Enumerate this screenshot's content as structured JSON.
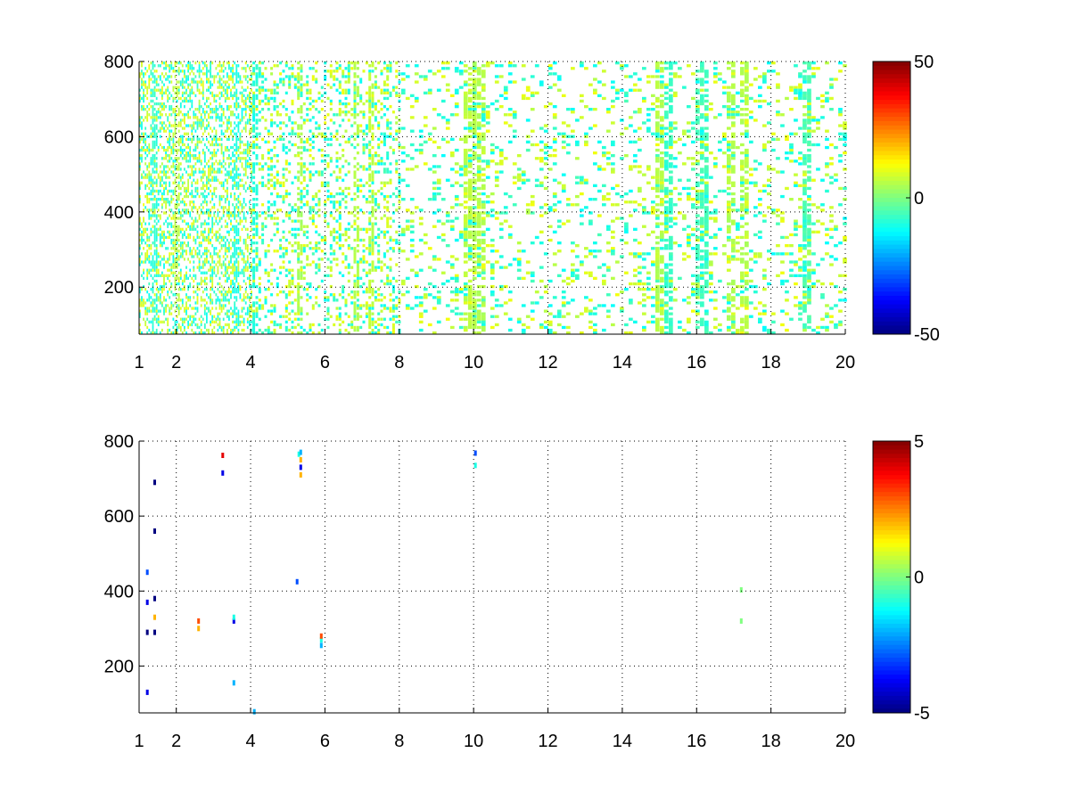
{
  "chart_data": [
    {
      "type": "heatmap",
      "xlim": [
        1,
        20
      ],
      "ylim": [
        75,
        800
      ],
      "xticks": [
        1,
        2,
        4,
        6,
        8,
        10,
        12,
        14,
        16,
        18,
        20
      ],
      "xtick_labels": [
        "1",
        "2",
        "4",
        "6",
        "8",
        "10",
        "12",
        "14",
        "16",
        "18",
        "20"
      ],
      "yticks": [
        200,
        400,
        600,
        800
      ],
      "ytick_labels": [
        "200",
        "400",
        "600",
        "800"
      ],
      "grid": true,
      "colormap": "jet",
      "colorbar": {
        "min": -50,
        "max": 50,
        "ticks": [
          50,
          0,
          -50
        ],
        "tick_labels": [
          "50",
          "0",
          "-50"
        ]
      },
      "value_range_shown": [
        -15,
        12
      ],
      "column_bands": [
        {
          "x": 1.4,
          "value": -8
        },
        {
          "x": 2.0,
          "value": 6
        },
        {
          "x": 3.6,
          "value": -10
        },
        {
          "x": 4.1,
          "value": -9
        },
        {
          "x": 5.3,
          "value": 4
        },
        {
          "x": 6.8,
          "value": 5
        },
        {
          "x": 7.2,
          "value": 6
        },
        {
          "x": 9.8,
          "value": 6
        },
        {
          "x": 10.1,
          "value": 5
        },
        {
          "x": 15.0,
          "value": 5
        },
        {
          "x": 15.2,
          "value": -7
        },
        {
          "x": 16.1,
          "value": -6
        },
        {
          "x": 16.9,
          "value": 5
        },
        {
          "x": 17.2,
          "value": 5
        },
        {
          "x": 18.9,
          "value": -5
        }
      ]
    },
    {
      "type": "heatmap",
      "xlim": [
        1,
        20
      ],
      "ylim": [
        75,
        800
      ],
      "xticks": [
        1,
        2,
        4,
        6,
        8,
        10,
        12,
        14,
        16,
        18,
        20
      ],
      "xtick_labels": [
        "1",
        "2",
        "4",
        "6",
        "8",
        "10",
        "12",
        "14",
        "16",
        "18",
        "20"
      ],
      "yticks": [
        200,
        400,
        600,
        800
      ],
      "ytick_labels": [
        "200",
        "400",
        "600",
        "800"
      ],
      "grid": true,
      "colormap": "jet",
      "colorbar": {
        "min": -5,
        "max": 5,
        "ticks": [
          5,
          0,
          -5
        ],
        "tick_labels": [
          "5",
          "0",
          "-5"
        ]
      },
      "cells": [
        {
          "x": 1.22,
          "y": 130,
          "value": -4
        },
        {
          "x": 1.22,
          "y": 290,
          "value": -5
        },
        {
          "x": 1.22,
          "y": 370,
          "value": -4
        },
        {
          "x": 1.22,
          "y": 450,
          "value": -3
        },
        {
          "x": 1.42,
          "y": 290,
          "value": -5
        },
        {
          "x": 1.42,
          "y": 330,
          "value": 2
        },
        {
          "x": 1.42,
          "y": 380,
          "value": -5
        },
        {
          "x": 1.42,
          "y": 560,
          "value": -5
        },
        {
          "x": 1.42,
          "y": 690,
          "value": -5
        },
        {
          "x": 2.6,
          "y": 300,
          "value": 2
        },
        {
          "x": 2.6,
          "y": 320,
          "value": 3
        },
        {
          "x": 3.25,
          "y": 715,
          "value": -4
        },
        {
          "x": 3.25,
          "y": 762,
          "value": 4
        },
        {
          "x": 3.55,
          "y": 155,
          "value": -2
        },
        {
          "x": 3.55,
          "y": 320,
          "value": -4
        },
        {
          "x": 3.55,
          "y": 330,
          "value": -1
        },
        {
          "x": 4.1,
          "y": 78,
          "value": -2
        },
        {
          "x": 5.25,
          "y": 425,
          "value": -3
        },
        {
          "x": 5.3,
          "y": 765,
          "value": -1
        },
        {
          "x": 5.35,
          "y": 710,
          "value": 2
        },
        {
          "x": 5.35,
          "y": 730,
          "value": -4
        },
        {
          "x": 5.35,
          "y": 750,
          "value": 2
        },
        {
          "x": 5.35,
          "y": 770,
          "value": -2
        },
        {
          "x": 5.9,
          "y": 255,
          "value": -2
        },
        {
          "x": 5.9,
          "y": 270,
          "value": -1
        },
        {
          "x": 5.9,
          "y": 280,
          "value": 3
        },
        {
          "x": 10.05,
          "y": 735,
          "value": -1
        },
        {
          "x": 10.05,
          "y": 768,
          "value": -3
        },
        {
          "x": 17.2,
          "y": 320,
          "value": 0
        },
        {
          "x": 17.2,
          "y": 403,
          "value": 0
        }
      ]
    }
  ]
}
